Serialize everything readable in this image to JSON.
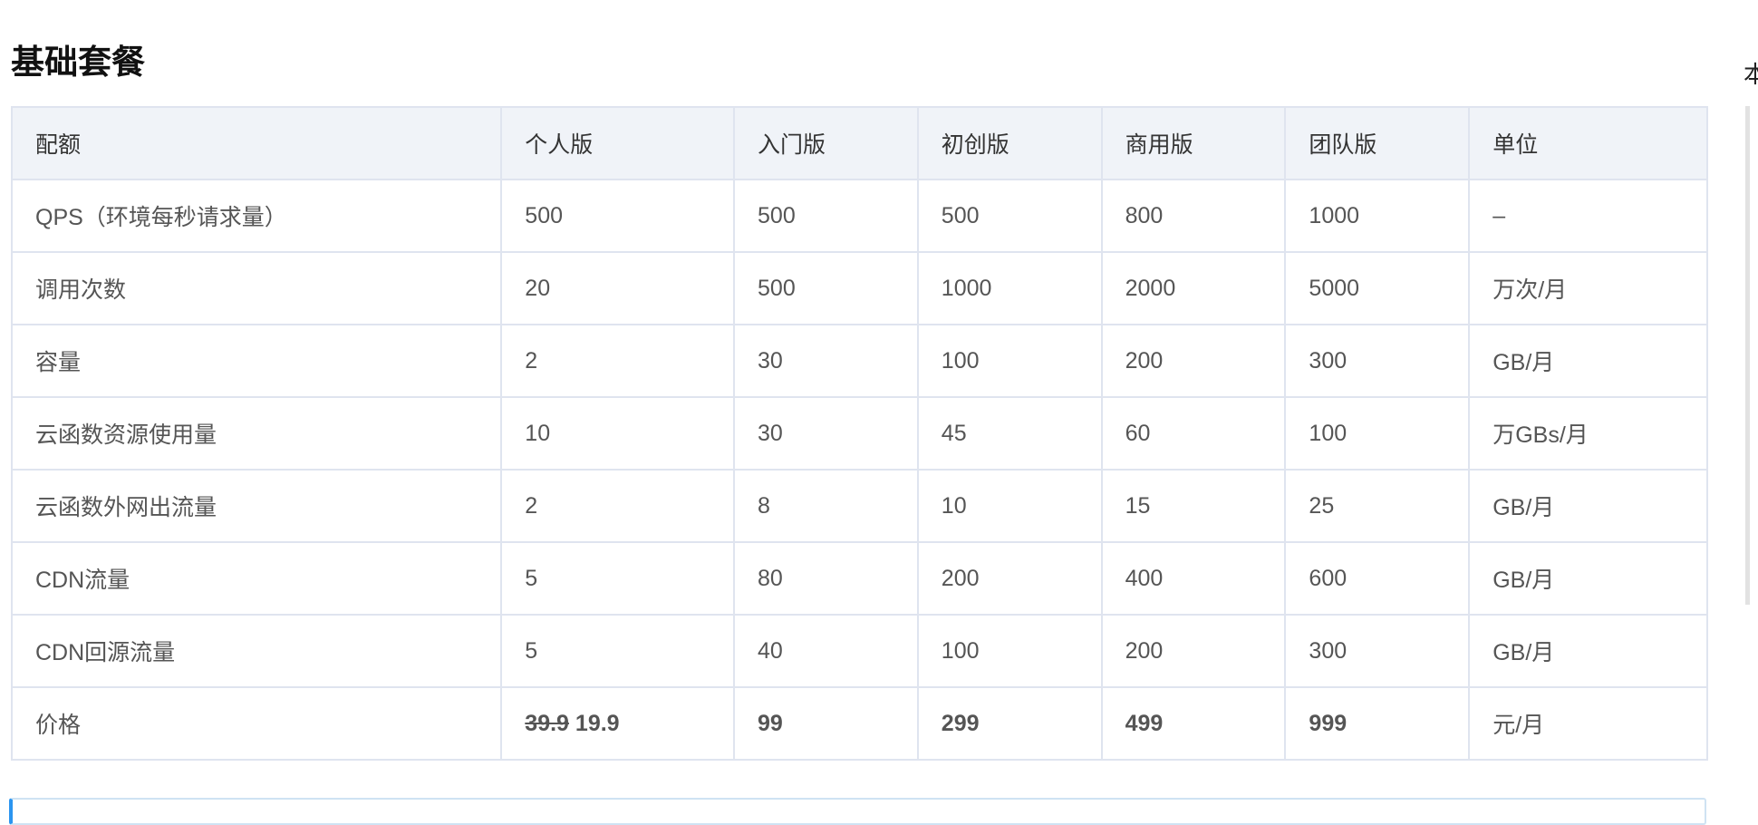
{
  "title": "基础套餐",
  "side_text": "本",
  "table": {
    "headers": [
      "配额",
      "个人版",
      "入门版",
      "初创版",
      "商用版",
      "团队版",
      "单位"
    ],
    "rows": [
      [
        "QPS（环境每秒请求量）",
        "500",
        "500",
        "500",
        "800",
        "1000",
        "–"
      ],
      [
        "调用次数",
        "20",
        "500",
        "1000",
        "2000",
        "5000",
        "万次/月"
      ],
      [
        "容量",
        "2",
        "30",
        "100",
        "200",
        "300",
        "GB/月"
      ],
      [
        "云函数资源使用量",
        "10",
        "30",
        "45",
        "60",
        "100",
        "万GBs/月"
      ],
      [
        "云函数外网出流量",
        "2",
        "8",
        "10",
        "15",
        "25",
        "GB/月"
      ],
      [
        "CDN流量",
        "5",
        "80",
        "200",
        "400",
        "600",
        "GB/月"
      ],
      [
        "CDN回源流量",
        "5",
        "40",
        "100",
        "200",
        "300",
        "GB/月"
      ]
    ],
    "price_row": {
      "label": "价格",
      "personal_original": "39.9",
      "personal_sale": "19.9",
      "starter": "99",
      "startup": "299",
      "business": "499",
      "team": "999",
      "unit": "元/月"
    }
  }
}
